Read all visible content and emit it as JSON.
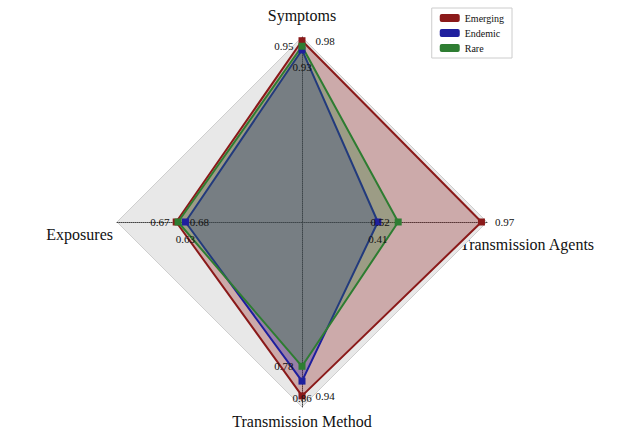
{
  "chart_data": {
    "type": "radar",
    "categories": [
      "Symptoms",
      "Exposures",
      "Transmission Method",
      "Transmission Agents"
    ],
    "series": [
      {
        "name": "Emerging",
        "color": "#8b1a1a",
        "values": [
          0.98,
          0.68,
          0.94,
          0.97
        ]
      },
      {
        "name": "Endemic",
        "color": "#1f1f9e",
        "values": [
          0.93,
          0.63,
          0.86,
          0.41
        ]
      },
      {
        "name": "Rare",
        "color": "#2e7d32",
        "values": [
          0.95,
          0.67,
          0.78,
          0.52
        ]
      }
    ],
    "ylim": [
      0,
      1
    ],
    "tick_labels": false,
    "data_labels": true,
    "marker": "square",
    "legend": "upper right"
  }
}
